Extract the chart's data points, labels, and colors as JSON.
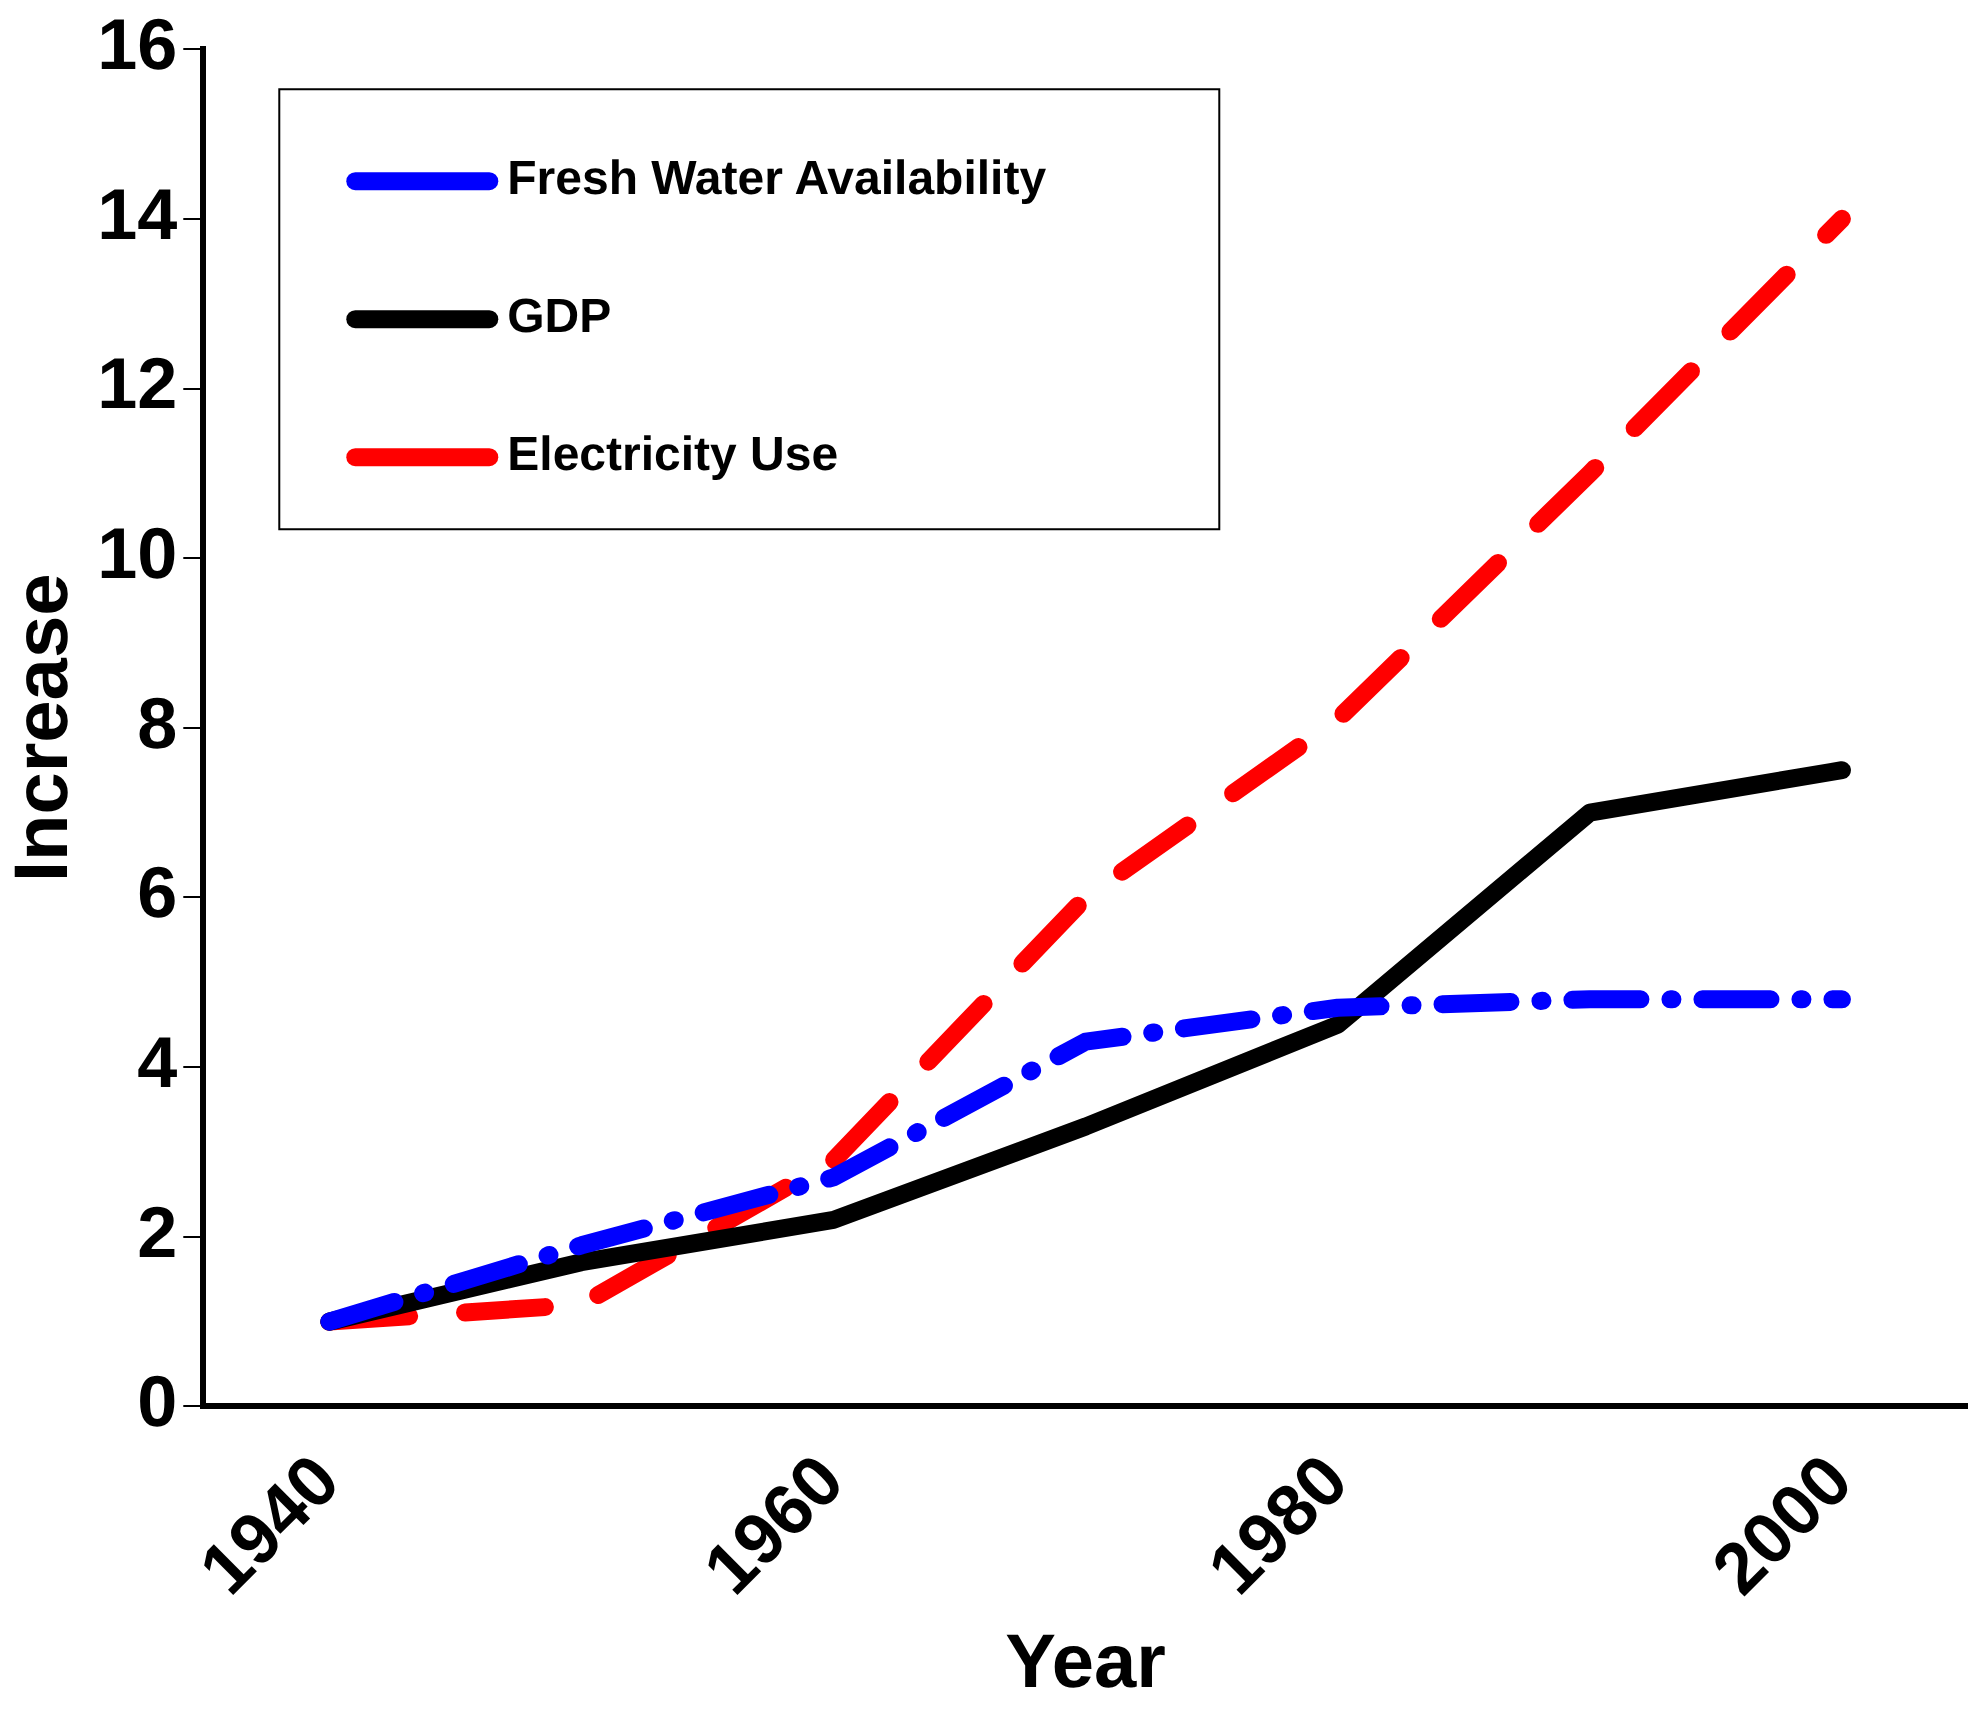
{
  "chart_data": {
    "type": "line",
    "xlabel": "Year",
    "ylabel": "Increase",
    "categories": [
      "1940",
      null,
      "1960",
      null,
      "1980",
      null,
      "2000"
    ],
    "series": [
      {
        "name": "Fresh Water Availability",
        "color": "#0000ff",
        "line_style": "dashdot",
        "values": [
          1.0,
          1.9,
          2.7,
          4.3,
          4.7,
          4.8,
          4.8
        ]
      },
      {
        "name": "GDP",
        "color": "#000000",
        "line_style": "solid",
        "values": [
          1.0,
          1.7,
          2.2,
          3.3,
          4.5,
          7.0,
          7.5
        ]
      },
      {
        "name": "Electricity Use",
        "color": "#ff0000",
        "line_style": "dashed",
        "values": [
          1.0,
          1.2,
          2.9,
          6.0,
          8.1,
          11.0,
          14.0
        ]
      }
    ],
    "ylim": [
      0,
      16
    ],
    "yticks": [
      0,
      2,
      4,
      6,
      8,
      10,
      12,
      14,
      16
    ],
    "grid": false,
    "legend": "top left",
    "marker": "none"
  }
}
